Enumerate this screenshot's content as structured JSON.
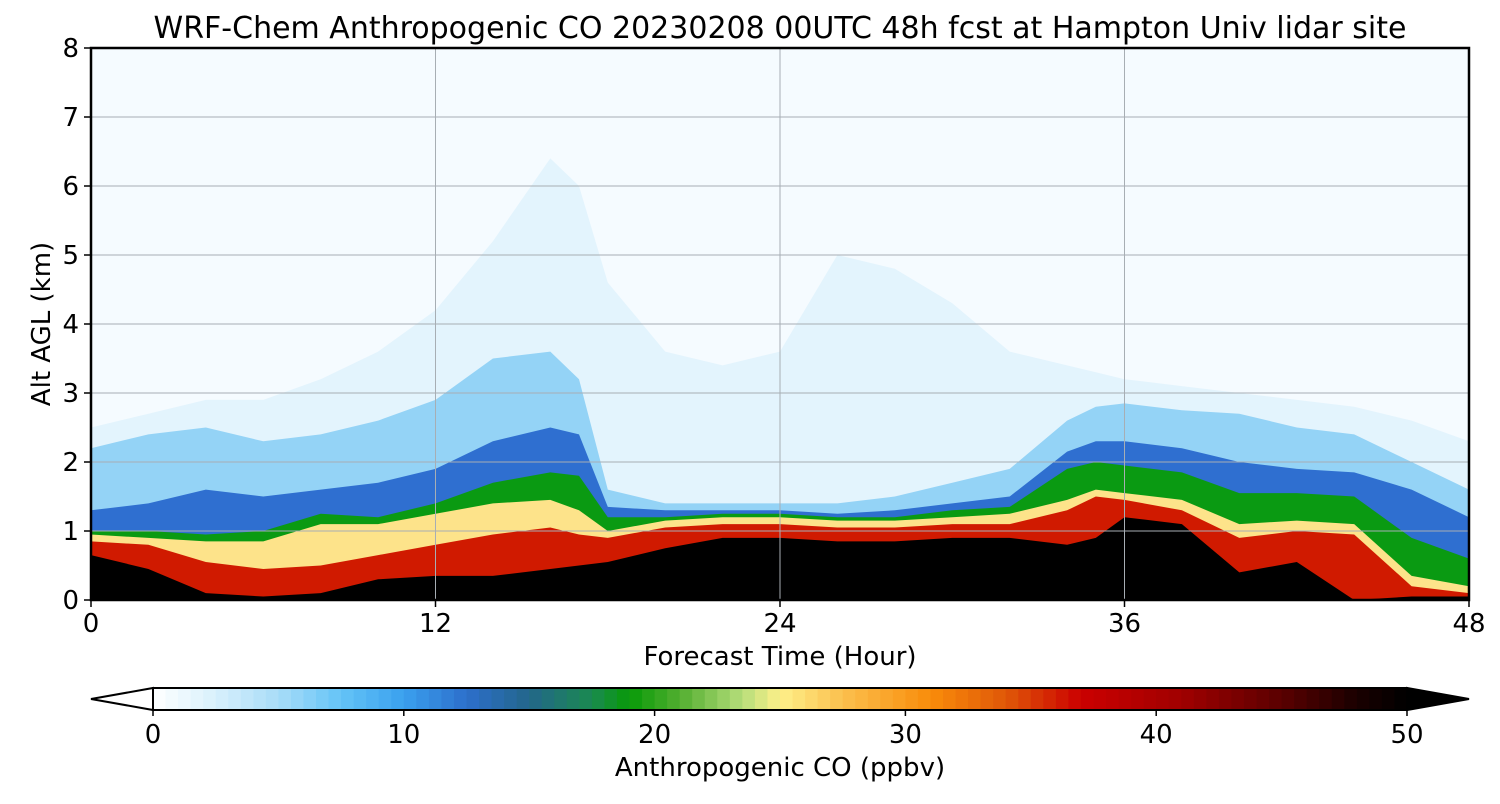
{
  "chart_data": {
    "type": "heatmap",
    "title": "WRF-Chem Anthropogenic CO  20230208 00UTC 48h fcst at Hampton Univ lidar site",
    "xlabel": "Forecast Time (Hour)",
    "ylabel": "Alt AGL (km)",
    "xlim": [
      0,
      48
    ],
    "ylim": [
      0,
      8
    ],
    "x_ticks": [
      0,
      12,
      24,
      36,
      48
    ],
    "y_ticks": [
      0,
      1,
      2,
      3,
      4,
      5,
      6,
      7,
      8
    ],
    "x_tick_labels": [
      "0",
      "12",
      "24",
      "36",
      "48"
    ],
    "y_tick_labels": [
      "0",
      "1",
      "2",
      "3",
      "4",
      "5",
      "6",
      "7",
      "8"
    ],
    "grid": true,
    "colorbar": {
      "label": "Anthropogenic CO  (ppbv)",
      "min": 0,
      "max": 50,
      "extend": "both",
      "ticks": [
        0,
        10,
        20,
        30,
        40,
        50
      ],
      "tick_labels": [
        "0",
        "10",
        "20",
        "30",
        "40",
        "50"
      ],
      "colors": [
        {
          "value": 0,
          "color": "#ffffff"
        },
        {
          "value": 2.5,
          "color": "#d8f0fc"
        },
        {
          "value": 5,
          "color": "#a8dcf8"
        },
        {
          "value": 7.5,
          "color": "#64c3f7"
        },
        {
          "value": 10,
          "color": "#3aa0ee"
        },
        {
          "value": 12.5,
          "color": "#2d6fcc"
        },
        {
          "value": 15,
          "color": "#23668a"
        },
        {
          "value": 17.5,
          "color": "#1a8a50"
        },
        {
          "value": 19,
          "color": "#089a08"
        },
        {
          "value": 21,
          "color": "#52ae30"
        },
        {
          "value": 23.5,
          "color": "#b6de7a"
        },
        {
          "value": 25,
          "color": "#fef08a"
        },
        {
          "value": 27.5,
          "color": "#fbc04e"
        },
        {
          "value": 31,
          "color": "#f98c0a"
        },
        {
          "value": 34,
          "color": "#e05808"
        },
        {
          "value": 37,
          "color": "#cb0000"
        },
        {
          "value": 41,
          "color": "#a00000"
        },
        {
          "value": 45,
          "color": "#5a0000"
        },
        {
          "value": 48,
          "color": "#1a0000"
        },
        {
          "value": 50,
          "color": "#000000"
        }
      ]
    },
    "field": {
      "x": [
        0,
        2,
        4,
        6,
        8,
        10,
        12,
        14,
        16,
        17,
        18,
        20,
        22,
        24,
        26,
        28,
        30,
        32,
        34,
        35,
        36,
        38,
        40,
        42,
        44,
        46,
        48
      ],
      "layer_tops": {
        "black": [
          0.65,
          0.45,
          0.1,
          0.05,
          0.1,
          0.3,
          0.35,
          0.35,
          0.45,
          0.5,
          0.55,
          0.75,
          0.9,
          0.9,
          0.85,
          0.85,
          0.9,
          0.9,
          0.8,
          0.9,
          1.2,
          1.1,
          0.4,
          0.55,
          0.0,
          0.05,
          0.05
        ],
        "red": [
          0.85,
          0.8,
          0.55,
          0.45,
          0.5,
          0.65,
          0.8,
          0.95,
          1.05,
          0.95,
          0.9,
          1.05,
          1.1,
          1.1,
          1.05,
          1.05,
          1.1,
          1.1,
          1.3,
          1.5,
          1.45,
          1.3,
          0.9,
          1.0,
          0.95,
          0.2,
          0.1
        ],
        "yellow": [
          0.95,
          0.9,
          0.85,
          0.85,
          1.1,
          1.1,
          1.25,
          1.4,
          1.45,
          1.3,
          1.0,
          1.15,
          1.2,
          1.2,
          1.15,
          1.15,
          1.2,
          1.25,
          1.45,
          1.6,
          1.55,
          1.45,
          1.1,
          1.15,
          1.1,
          0.35,
          0.2
        ],
        "green": [
          1.0,
          1.0,
          0.95,
          1.0,
          1.25,
          1.2,
          1.4,
          1.7,
          1.85,
          1.8,
          1.2,
          1.2,
          1.25,
          1.25,
          1.2,
          1.2,
          1.3,
          1.35,
          1.9,
          2.0,
          1.95,
          1.85,
          1.55,
          1.55,
          1.5,
          0.9,
          0.6
        ],
        "blue": [
          1.3,
          1.4,
          1.6,
          1.5,
          1.6,
          1.7,
          1.9,
          2.3,
          2.5,
          2.4,
          1.35,
          1.3,
          1.3,
          1.3,
          1.25,
          1.3,
          1.4,
          1.5,
          2.15,
          2.3,
          2.3,
          2.2,
          2.0,
          1.9,
          1.85,
          1.6,
          1.2
        ],
        "lightblue": [
          2.2,
          2.4,
          2.5,
          2.3,
          2.4,
          2.6,
          2.9,
          3.5,
          3.6,
          3.2,
          1.6,
          1.4,
          1.4,
          1.4,
          1.4,
          1.5,
          1.7,
          1.9,
          2.6,
          2.8,
          2.85,
          2.75,
          2.7,
          2.5,
          2.4,
          2.0,
          1.6
        ],
        "faint": [
          2.5,
          2.7,
          2.9,
          2.9,
          3.2,
          3.6,
          4.2,
          5.2,
          6.4,
          6.0,
          4.6,
          3.6,
          3.4,
          3.6,
          5.0,
          4.8,
          4.3,
          3.6,
          3.4,
          3.3,
          3.2,
          3.1,
          3.0,
          2.9,
          2.8,
          2.6,
          2.3
        ]
      }
    }
  }
}
